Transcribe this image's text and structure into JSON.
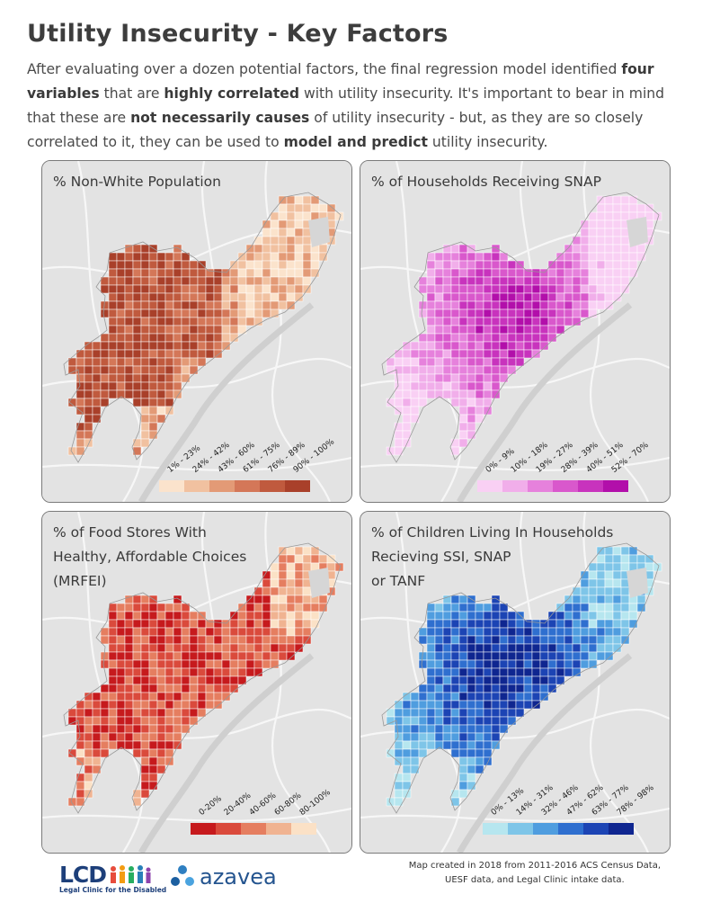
{
  "title": "Utility Insecurity - Key Factors",
  "intro": {
    "p1": "After evaluating over a dozen potential factors, the final regression model identified ",
    "b1": "four variables",
    "p2": " that are ",
    "b2": "highly correlated",
    "p3": " with utility insecurity. It's important to bear in mind that these are ",
    "b3": "not necessarily causes",
    "p4": " of utility insecurity - but, as they are so closely correlated to it, they can be used to ",
    "b4": "model and predict",
    "p5": " utility insecurity."
  },
  "maps": [
    {
      "title_lines": [
        "% Non-White Population"
      ],
      "legend_labels": [
        "1% - 23%",
        "24% - 42%",
        "43% - 60%",
        "61% - 75%",
        "76% - 89%",
        "90% - 100%"
      ],
      "colors": [
        "#fbe3cc",
        "#f1c1a0",
        "#e39a76",
        "#d47758",
        "#c05a3e",
        "#a9402a"
      ]
    },
    {
      "title_lines": [
        "% of Households Receiving SNAP"
      ],
      "legend_labels": [
        "0% - 9%",
        "10% - 18%",
        "19% - 27%",
        "28% - 39%",
        "40% - 51%",
        "52% - 70%"
      ],
      "colors": [
        "#f9d0f4",
        "#f1aeea",
        "#e681dc",
        "#d958cc",
        "#c833bd",
        "#b20faa"
      ]
    },
    {
      "title_lines": [
        "% of Food Stores With",
        "Healthy, Affordable Choices",
        "(MRFEI)"
      ],
      "legend_labels": [
        "0-20%",
        "20-40%",
        "40-60%",
        "60-80%",
        "80-100%"
      ],
      "colors": [
        "#c61a1d",
        "#da4a3c",
        "#e57e60",
        "#f0b391",
        "#fbe1c6"
      ]
    },
    {
      "title_lines": [
        "% of Children Living In Households",
        "Recieving SSI, SNAP",
        "or TANF"
      ],
      "legend_labels": [
        "0% - 13%",
        "14% - 31%",
        "32% - 46%",
        "47% - 62%",
        "63% - 77%",
        "78% - 98%"
      ],
      "colors": [
        "#b6e6ef",
        "#7ec5e8",
        "#4f9ddf",
        "#2f6fcf",
        "#1c44b4",
        "#0f2690"
      ]
    }
  ],
  "footer": {
    "note_lines": [
      "Map created in 2018 from 2011-2016 ACS Census Data,",
      "UESF data, and Legal Clinic intake data."
    ],
    "lcd_logo": "LCD",
    "lcd_sub": "Legal Clinic for the Disabled",
    "azavea_logo": "azavea"
  }
}
